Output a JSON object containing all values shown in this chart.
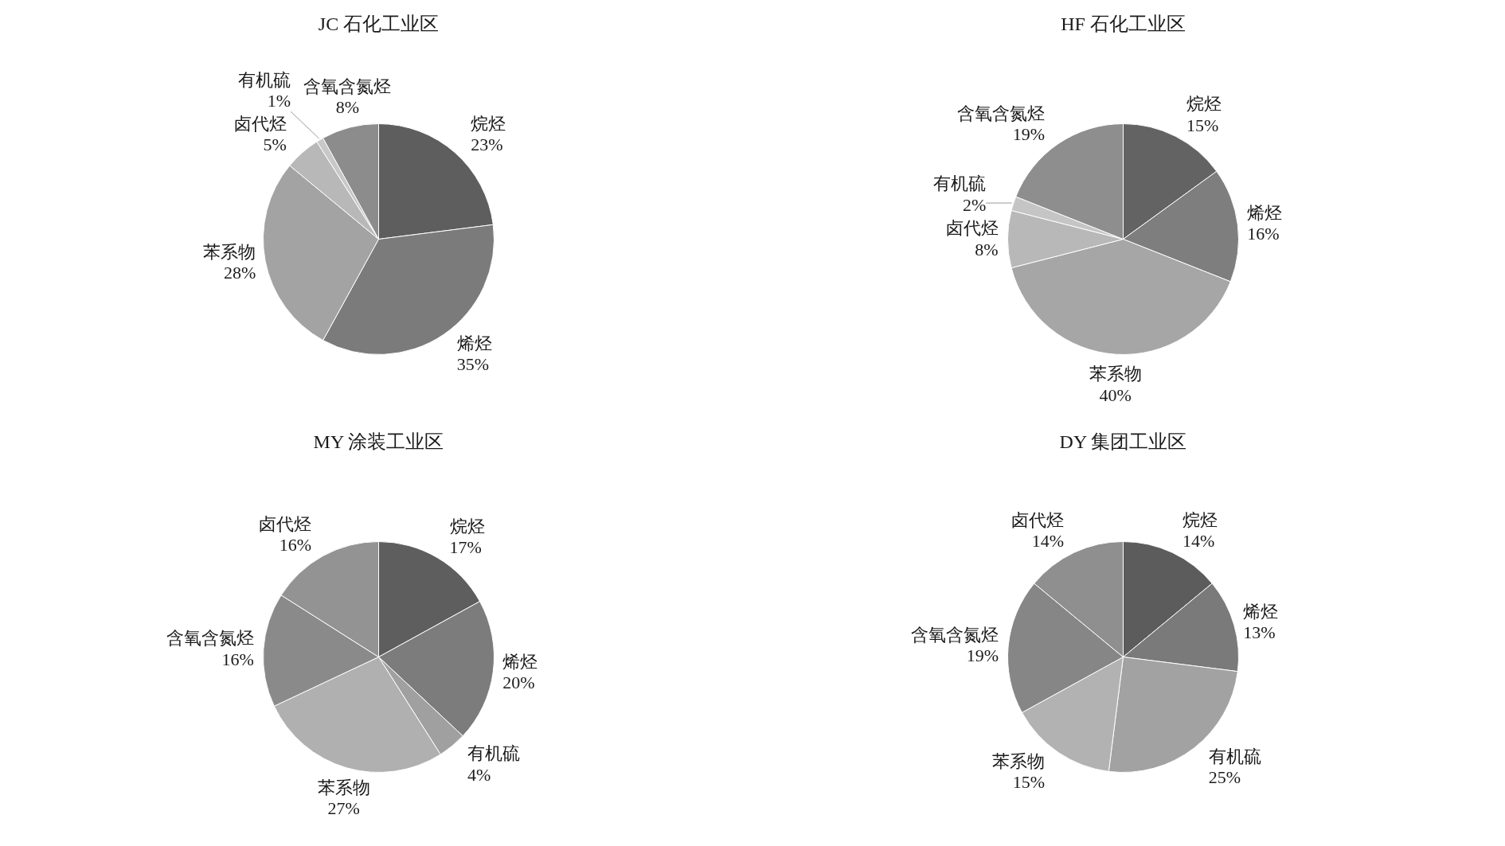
{
  "chart_data": [
    {
      "type": "pie",
      "title": "JC 石化工业区",
      "categories": [
        "烷烃",
        "烯烃",
        "苯系物",
        "卤代烃",
        "有机硫",
        "含氧含氮烃"
      ],
      "values": [
        23,
        35,
        28,
        5,
        1,
        8
      ],
      "value_labels": [
        "23%",
        "35%",
        "28%",
        "5%",
        "1%",
        "8%"
      ],
      "colors": [
        "#5e5e5e",
        "#7b7b7b",
        "#a3a3a3",
        "#b8b8b8",
        "#c8c8c8",
        "#8c8c8c"
      ]
    },
    {
      "type": "pie",
      "title": "HF 石化工业区",
      "categories": [
        "烷烃",
        "烯烃",
        "苯系物",
        "卤代烃",
        "有机硫",
        "含氧含氮烃"
      ],
      "values": [
        15,
        16,
        40,
        8,
        2,
        19
      ],
      "value_labels": [
        "15%",
        "16%",
        "40%",
        "8%",
        "2%",
        "19%"
      ],
      "colors": [
        "#636363",
        "#7e7e7e",
        "#a6a6a6",
        "#b8b8b8",
        "#c5c5c5",
        "#8e8e8e"
      ]
    },
    {
      "type": "pie",
      "title": "MY 涂装工业区",
      "categories": [
        "烷烃",
        "烯烃",
        "有机硫",
        "苯系物",
        "含氧含氮烃",
        "卤代烃"
      ],
      "values": [
        17,
        20,
        4,
        27,
        16,
        16
      ],
      "value_labels": [
        "17%",
        "20%",
        "4%",
        "27%",
        "16%",
        "16%"
      ],
      "colors": [
        "#5e5e5e",
        "#7c7c7c",
        "#a0a0a0",
        "#b0b0b0",
        "#8a8a8a",
        "#939393"
      ]
    },
    {
      "type": "pie",
      "title": "DY 集团工业区",
      "categories": [
        "烷烃",
        "烯烃",
        "有机硫",
        "苯系物",
        "含氧含氮烃",
        "卤代烃"
      ],
      "values": [
        14,
        13,
        25,
        15,
        19,
        14
      ],
      "value_labels": [
        "14%",
        "13%",
        "25%",
        "15%",
        "19%",
        "14%"
      ],
      "colors": [
        "#5c5c5c",
        "#7a7a7a",
        "#a2a2a2",
        "#b2b2b2",
        "#868686",
        "#8f8f8f"
      ]
    }
  ]
}
